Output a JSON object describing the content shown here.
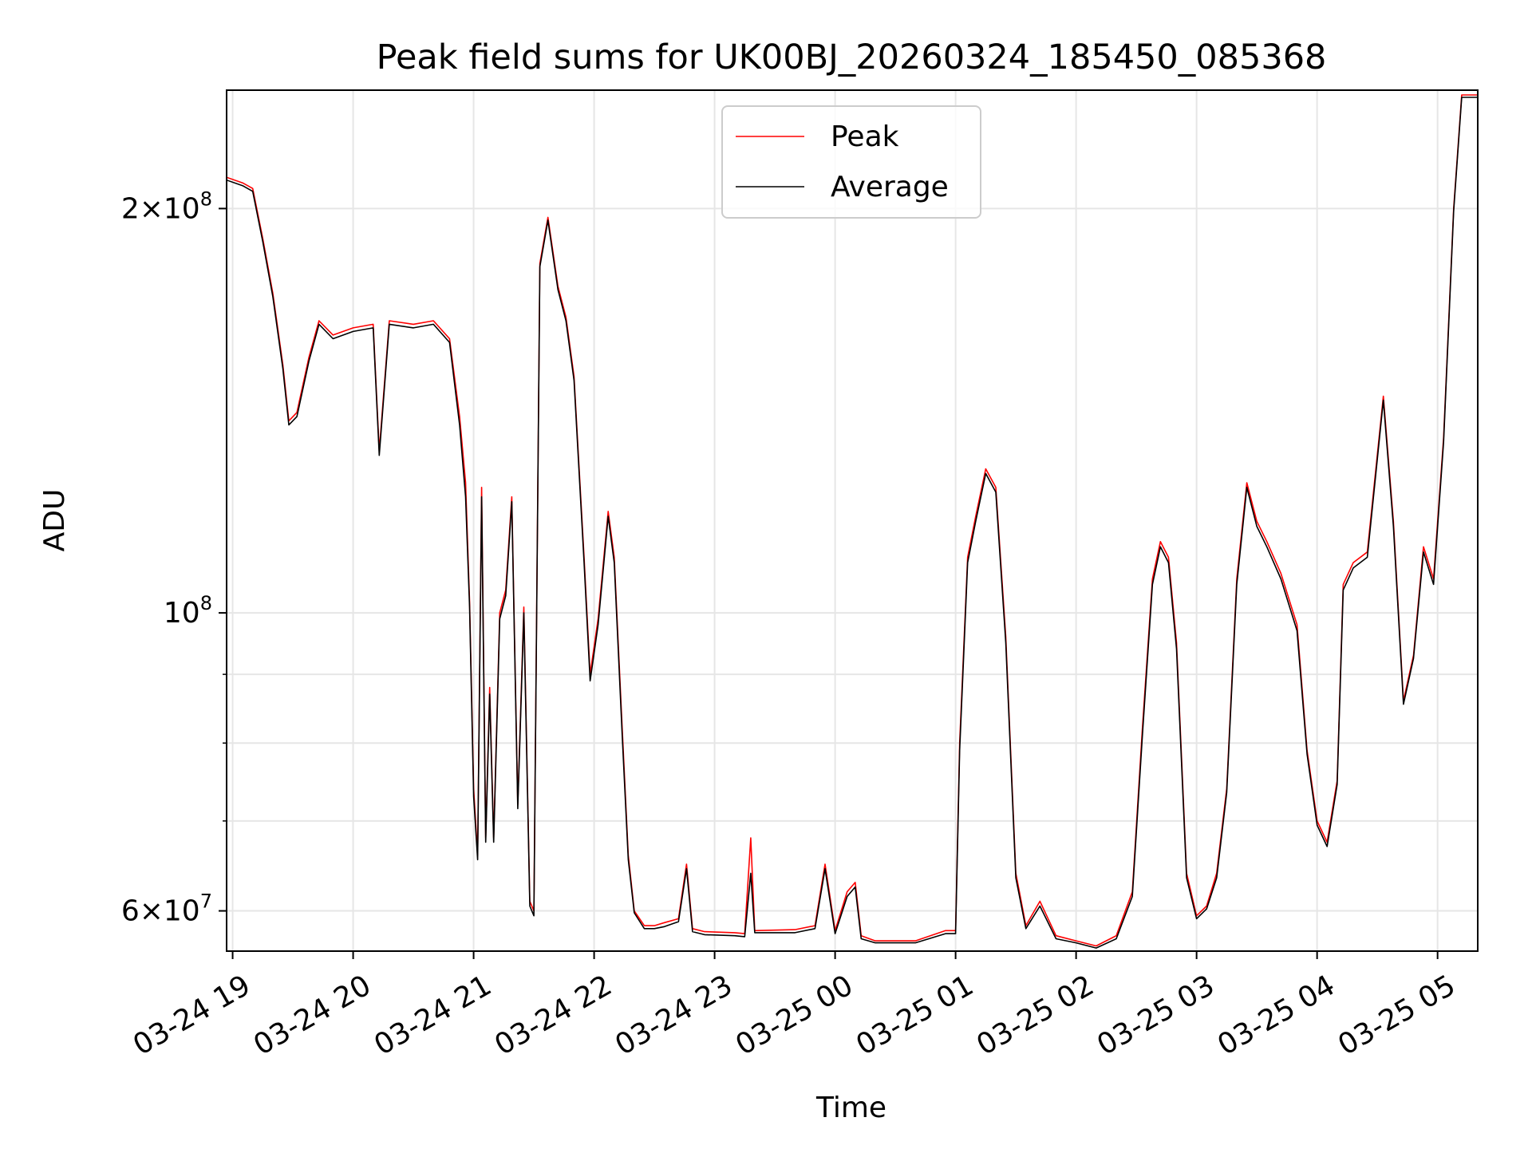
{
  "chart_data": {
    "type": "line",
    "title": "Peak field sums for UK00BJ_20260324_185450_085368",
    "xlabel": "Time",
    "ylabel": "ADU",
    "y_scale": "log",
    "ylim": [
      56000000,
      245000000
    ],
    "xlim": [
      "2026-03-24 18:57",
      "2026-03-25 05:20"
    ],
    "grid": true,
    "legend_position": "top-center",
    "x_ticks": [
      "2026-03-24 19:00",
      "2026-03-24 20:00",
      "2026-03-24 21:00",
      "2026-03-24 22:00",
      "2026-03-24 23:00",
      "2026-03-25 00:00",
      "2026-03-25 01:00",
      "2026-03-25 02:00",
      "2026-03-25 03:00",
      "2026-03-25 04:00",
      "2026-03-25 05:00"
    ],
    "x_tick_labels": [
      "03-24 19",
      "03-24 20",
      "03-24 21",
      "03-24 22",
      "03-24 23",
      "03-25 00",
      "03-25 01",
      "03-25 02",
      "03-25 03",
      "03-25 04",
      "03-25 05"
    ],
    "y_major_ticks": [
      {
        "value": 60000000,
        "mantissa": "6",
        "times": "×",
        "base": "10",
        "exp": "7"
      },
      {
        "value": 100000000,
        "mantissa": "",
        "times": "",
        "base": "10",
        "exp": "8"
      },
      {
        "value": 200000000,
        "mantissa": "2",
        "times": "×",
        "base": "10",
        "exp": "8"
      }
    ],
    "y_minor_gridlines": [
      70000000,
      80000000,
      90000000
    ],
    "series": [
      {
        "name": "Peak",
        "color": "#ff0000",
        "points": [
          [
            "2026-03-24 18:57",
            211000000
          ],
          [
            "2026-03-24 19:05",
            209000000
          ],
          [
            "2026-03-24 19:10",
            207000000
          ],
          [
            "2026-03-24 19:15",
            190000000
          ],
          [
            "2026-03-24 19:20",
            173000000
          ],
          [
            "2026-03-24 19:25",
            153000000
          ],
          [
            "2026-03-24 19:28",
            139000000
          ],
          [
            "2026-03-24 19:32",
            141000000
          ],
          [
            "2026-03-24 19:38",
            155000000
          ],
          [
            "2026-03-24 19:43",
            165000000
          ],
          [
            "2026-03-24 19:50",
            161000000
          ],
          [
            "2026-03-24 20:00",
            163000000
          ],
          [
            "2026-03-24 20:10",
            164000000
          ],
          [
            "2026-03-24 20:13",
            132000000
          ],
          [
            "2026-03-24 20:18",
            165000000
          ],
          [
            "2026-03-24 20:30",
            164000000
          ],
          [
            "2026-03-24 20:40",
            165000000
          ],
          [
            "2026-03-24 20:48",
            160000000
          ],
          [
            "2026-03-24 20:53",
            140000000
          ],
          [
            "2026-03-24 20:56",
            125000000
          ],
          [
            "2026-03-24 20:58",
            102000000
          ],
          [
            "2026-03-24 21:00",
            74000000
          ],
          [
            "2026-03-24 21:02",
            66000000
          ],
          [
            "2026-03-24 21:04",
            124000000
          ],
          [
            "2026-03-24 21:06",
            68000000
          ],
          [
            "2026-03-24 21:08",
            88000000
          ],
          [
            "2026-03-24 21:10",
            68000000
          ],
          [
            "2026-03-24 21:13",
            100000000
          ],
          [
            "2026-03-24 21:16",
            104000000
          ],
          [
            "2026-03-24 21:19",
            122000000
          ],
          [
            "2026-03-24 21:22",
            72000000
          ],
          [
            "2026-03-24 21:25",
            101000000
          ],
          [
            "2026-03-24 21:28",
            61000000
          ],
          [
            "2026-03-24 21:30",
            60000000
          ],
          [
            "2026-03-24 21:33",
            182000000
          ],
          [
            "2026-03-24 21:37",
            197000000
          ],
          [
            "2026-03-24 21:42",
            175000000
          ],
          [
            "2026-03-24 21:46",
            166000000
          ],
          [
            "2026-03-24 21:50",
            150000000
          ],
          [
            "2026-03-24 21:55",
            110000000
          ],
          [
            "2026-03-24 21:58",
            90000000
          ],
          [
            "2026-03-24 22:02",
            99000000
          ],
          [
            "2026-03-24 22:07",
            119000000
          ],
          [
            "2026-03-24 22:10",
            110000000
          ],
          [
            "2026-03-24 22:14",
            82000000
          ],
          [
            "2026-03-24 22:17",
            66000000
          ],
          [
            "2026-03-24 22:20",
            60000000
          ],
          [
            "2026-03-24 22:25",
            58500000
          ],
          [
            "2026-03-24 22:30",
            58500000
          ],
          [
            "2026-03-24 22:35",
            58800000
          ],
          [
            "2026-03-24 22:42",
            59200000
          ],
          [
            "2026-03-24 22:46",
            65000000
          ],
          [
            "2026-03-24 22:49",
            58200000
          ],
          [
            "2026-03-24 22:55",
            57900000
          ],
          [
            "2026-03-24 23:10",
            57800000
          ],
          [
            "2026-03-24 23:15",
            57700000
          ],
          [
            "2026-03-24 23:18",
            68000000
          ],
          [
            "2026-03-24 23:20",
            58000000
          ],
          [
            "2026-03-24 23:40",
            58100000
          ],
          [
            "2026-03-24 23:50",
            58500000
          ],
          [
            "2026-03-24 23:55",
            65000000
          ],
          [
            "2026-03-25 00:00",
            58000000
          ],
          [
            "2026-03-25 00:06",
            62000000
          ],
          [
            "2026-03-25 00:10",
            63000000
          ],
          [
            "2026-03-25 00:13",
            57500000
          ],
          [
            "2026-03-25 00:20",
            57000000
          ],
          [
            "2026-03-25 00:40",
            57000000
          ],
          [
            "2026-03-25 00:55",
            58000000
          ],
          [
            "2026-03-25 01:00",
            58000000
          ],
          [
            "2026-03-25 01:02",
            80000000
          ],
          [
            "2026-03-25 01:06",
            110000000
          ],
          [
            "2026-03-25 01:10",
            118000000
          ],
          [
            "2026-03-25 01:15",
            128000000
          ],
          [
            "2026-03-25 01:20",
            124000000
          ],
          [
            "2026-03-25 01:25",
            96000000
          ],
          [
            "2026-03-25 01:30",
            64000000
          ],
          [
            "2026-03-25 01:35",
            58500000
          ],
          [
            "2026-03-25 01:42",
            61000000
          ],
          [
            "2026-03-25 01:50",
            57500000
          ],
          [
            "2026-03-25 02:00",
            57000000
          ],
          [
            "2026-03-25 02:10",
            56500000
          ],
          [
            "2026-03-25 02:20",
            57500000
          ],
          [
            "2026-03-25 02:28",
            62000000
          ],
          [
            "2026-03-25 02:33",
            82000000
          ],
          [
            "2026-03-25 02:38",
            106000000
          ],
          [
            "2026-03-25 02:42",
            113000000
          ],
          [
            "2026-03-25 02:46",
            110000000
          ],
          [
            "2026-03-25 02:50",
            95000000
          ],
          [
            "2026-03-25 02:55",
            64000000
          ],
          [
            "2026-03-25 03:00",
            59500000
          ],
          [
            "2026-03-25 03:05",
            60500000
          ],
          [
            "2026-03-25 03:10",
            64000000
          ],
          [
            "2026-03-25 03:15",
            74000000
          ],
          [
            "2026-03-25 03:20",
            106000000
          ],
          [
            "2026-03-25 03:25",
            125000000
          ],
          [
            "2026-03-25 03:30",
            117000000
          ],
          [
            "2026-03-25 03:35",
            113000000
          ],
          [
            "2026-03-25 03:42",
            107000000
          ],
          [
            "2026-03-25 03:50",
            98000000
          ],
          [
            "2026-03-25 03:55",
            79000000
          ],
          [
            "2026-03-25 04:00",
            70000000
          ],
          [
            "2026-03-25 04:05",
            67500000
          ],
          [
            "2026-03-25 04:10",
            75000000
          ],
          [
            "2026-03-25 04:13",
            105000000
          ],
          [
            "2026-03-25 04:18",
            109000000
          ],
          [
            "2026-03-25 04:25",
            111000000
          ],
          [
            "2026-03-25 04:33",
            145000000
          ],
          [
            "2026-03-25 04:38",
            117000000
          ],
          [
            "2026-03-25 04:43",
            86000000
          ],
          [
            "2026-03-25 04:48",
            93000000
          ],
          [
            "2026-03-25 04:53",
            112000000
          ],
          [
            "2026-03-25 04:58",
            106000000
          ],
          [
            "2026-03-25 05:03",
            135000000
          ],
          [
            "2026-03-25 05:08",
            200000000
          ],
          [
            "2026-03-25 05:12",
            243000000
          ],
          [
            "2026-03-25 05:20",
            243000000
          ]
        ]
      },
      {
        "name": "Average",
        "color": "#000000",
        "points": [
          [
            "2026-03-24 18:57",
            210000000
          ],
          [
            "2026-03-24 19:05",
            208000000
          ],
          [
            "2026-03-24 19:10",
            206000000
          ],
          [
            "2026-03-24 19:15",
            189000000
          ],
          [
            "2026-03-24 19:20",
            172000000
          ],
          [
            "2026-03-24 19:25",
            152000000
          ],
          [
            "2026-03-24 19:28",
            138000000
          ],
          [
            "2026-03-24 19:32",
            140000000
          ],
          [
            "2026-03-24 19:38",
            154000000
          ],
          [
            "2026-03-24 19:43",
            164000000
          ],
          [
            "2026-03-24 19:50",
            160000000
          ],
          [
            "2026-03-24 20:00",
            162000000
          ],
          [
            "2026-03-24 20:10",
            163000000
          ],
          [
            "2026-03-24 20:13",
            131000000
          ],
          [
            "2026-03-24 20:18",
            164000000
          ],
          [
            "2026-03-24 20:30",
            163000000
          ],
          [
            "2026-03-24 20:40",
            164000000
          ],
          [
            "2026-03-24 20:48",
            159000000
          ],
          [
            "2026-03-24 20:53",
            138000000
          ],
          [
            "2026-03-24 20:56",
            122000000
          ],
          [
            "2026-03-24 20:58",
            101000000
          ],
          [
            "2026-03-24 21:00",
            73000000
          ],
          [
            "2026-03-24 21:02",
            65500000
          ],
          [
            "2026-03-24 21:04",
            122000000
          ],
          [
            "2026-03-24 21:06",
            67500000
          ],
          [
            "2026-03-24 21:08",
            87000000
          ],
          [
            "2026-03-24 21:10",
            67500000
          ],
          [
            "2026-03-24 21:13",
            99000000
          ],
          [
            "2026-03-24 21:16",
            103000000
          ],
          [
            "2026-03-24 21:19",
            121000000
          ],
          [
            "2026-03-24 21:22",
            71500000
          ],
          [
            "2026-03-24 21:25",
            100000000
          ],
          [
            "2026-03-24 21:28",
            60500000
          ],
          [
            "2026-03-24 21:30",
            59500000
          ],
          [
            "2026-03-24 21:33",
            181000000
          ],
          [
            "2026-03-24 21:37",
            196000000
          ],
          [
            "2026-03-24 21:42",
            174000000
          ],
          [
            "2026-03-24 21:46",
            165000000
          ],
          [
            "2026-03-24 21:50",
            149000000
          ],
          [
            "2026-03-24 21:55",
            109000000
          ],
          [
            "2026-03-24 21:58",
            89000000
          ],
          [
            "2026-03-24 22:02",
            98000000
          ],
          [
            "2026-03-24 22:07",
            118000000
          ],
          [
            "2026-03-24 22:10",
            109000000
          ],
          [
            "2026-03-24 22:14",
            81000000
          ],
          [
            "2026-03-24 22:17",
            65500000
          ],
          [
            "2026-03-24 22:20",
            59800000
          ],
          [
            "2026-03-24 22:25",
            58200000
          ],
          [
            "2026-03-24 22:30",
            58200000
          ],
          [
            "2026-03-24 22:35",
            58400000
          ],
          [
            "2026-03-24 22:42",
            58900000
          ],
          [
            "2026-03-24 22:46",
            64500000
          ],
          [
            "2026-03-24 22:49",
            57900000
          ],
          [
            "2026-03-24 22:55",
            57600000
          ],
          [
            "2026-03-24 23:10",
            57500000
          ],
          [
            "2026-03-24 23:15",
            57400000
          ],
          [
            "2026-03-24 23:18",
            64000000
          ],
          [
            "2026-03-24 23:20",
            57800000
          ],
          [
            "2026-03-24 23:40",
            57800000
          ],
          [
            "2026-03-24 23:50",
            58200000
          ],
          [
            "2026-03-24 23:55",
            64500000
          ],
          [
            "2026-03-25 00:00",
            57700000
          ],
          [
            "2026-03-25 00:06",
            61500000
          ],
          [
            "2026-03-25 00:10",
            62500000
          ],
          [
            "2026-03-25 00:13",
            57200000
          ],
          [
            "2026-03-25 00:20",
            56800000
          ],
          [
            "2026-03-25 00:40",
            56800000
          ],
          [
            "2026-03-25 00:55",
            57700000
          ],
          [
            "2026-03-25 01:00",
            57700000
          ],
          [
            "2026-03-25 01:02",
            79000000
          ],
          [
            "2026-03-25 01:06",
            109000000
          ],
          [
            "2026-03-25 01:10",
            117000000
          ],
          [
            "2026-03-25 01:15",
            127000000
          ],
          [
            "2026-03-25 01:20",
            123000000
          ],
          [
            "2026-03-25 01:25",
            95000000
          ],
          [
            "2026-03-25 01:30",
            63500000
          ],
          [
            "2026-03-25 01:35",
            58200000
          ],
          [
            "2026-03-25 01:42",
            60500000
          ],
          [
            "2026-03-25 01:50",
            57200000
          ],
          [
            "2026-03-25 02:00",
            56800000
          ],
          [
            "2026-03-25 02:10",
            56300000
          ],
          [
            "2026-03-25 02:20",
            57200000
          ],
          [
            "2026-03-25 02:28",
            61500000
          ],
          [
            "2026-03-25 02:33",
            81000000
          ],
          [
            "2026-03-25 02:38",
            105000000
          ],
          [
            "2026-03-25 02:42",
            112000000
          ],
          [
            "2026-03-25 02:46",
            109000000
          ],
          [
            "2026-03-25 02:50",
            94000000
          ],
          [
            "2026-03-25 02:55",
            63500000
          ],
          [
            "2026-03-25 03:00",
            59200000
          ],
          [
            "2026-03-25 03:05",
            60200000
          ],
          [
            "2026-03-25 03:10",
            63500000
          ],
          [
            "2026-03-25 03:15",
            73500000
          ],
          [
            "2026-03-25 03:20",
            105000000
          ],
          [
            "2026-03-25 03:25",
            124000000
          ],
          [
            "2026-03-25 03:30",
            116000000
          ],
          [
            "2026-03-25 03:35",
            112000000
          ],
          [
            "2026-03-25 03:42",
            106000000
          ],
          [
            "2026-03-25 03:50",
            97000000
          ],
          [
            "2026-03-25 03:55",
            78500000
          ],
          [
            "2026-03-25 04:00",
            69500000
          ],
          [
            "2026-03-25 04:05",
            67000000
          ],
          [
            "2026-03-25 04:10",
            74500000
          ],
          [
            "2026-03-25 04:13",
            104000000
          ],
          [
            "2026-03-25 04:18",
            108000000
          ],
          [
            "2026-03-25 04:25",
            110000000
          ],
          [
            "2026-03-25 04:33",
            144000000
          ],
          [
            "2026-03-25 04:38",
            116000000
          ],
          [
            "2026-03-25 04:43",
            85500000
          ],
          [
            "2026-03-25 04:48",
            92500000
          ],
          [
            "2026-03-25 04:53",
            111000000
          ],
          [
            "2026-03-25 04:58",
            105000000
          ],
          [
            "2026-03-25 05:03",
            134000000
          ],
          [
            "2026-03-25 05:08",
            199000000
          ],
          [
            "2026-03-25 05:12",
            242000000
          ],
          [
            "2026-03-25 05:20",
            242000000
          ]
        ]
      }
    ]
  }
}
